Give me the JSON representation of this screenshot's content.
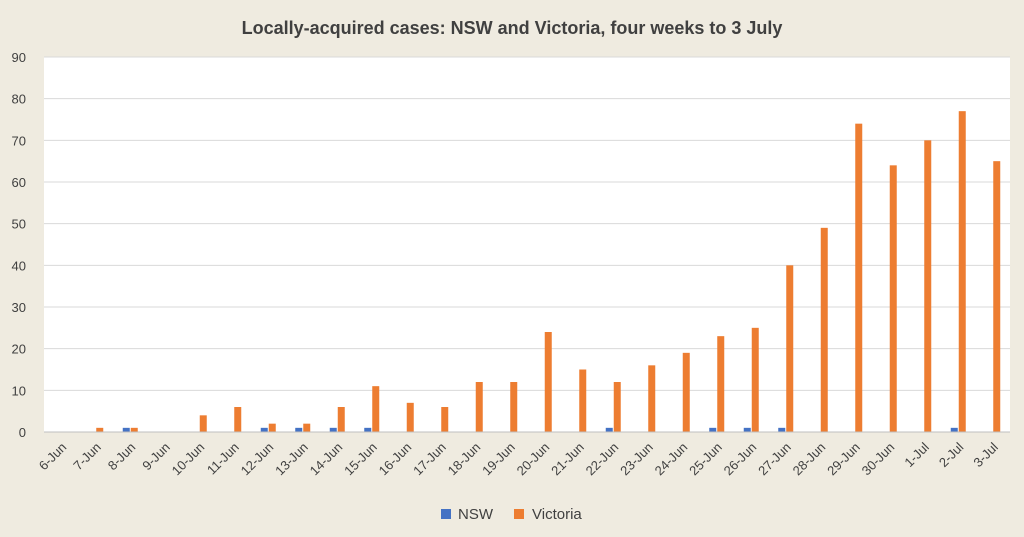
{
  "chart_data": {
    "type": "bar",
    "title": "Locally-acquired cases: NSW and Victoria, four weeks to 3 July",
    "xlabel": "",
    "ylabel": "",
    "ylim": [
      0,
      90
    ],
    "yticks": [
      0,
      10,
      20,
      30,
      40,
      50,
      60,
      70,
      80,
      90
    ],
    "grid": true,
    "legend_position": "bottom",
    "categories": [
      "6-Jun",
      "7-Jun",
      "8-Jun",
      "9-Jun",
      "10-Jun",
      "11-Jun",
      "12-Jun",
      "13-Jun",
      "14-Jun",
      "15-Jun",
      "16-Jun",
      "17-Jun",
      "18-Jun",
      "19-Jun",
      "20-Jun",
      "21-Jun",
      "22-Jun",
      "23-Jun",
      "24-Jun",
      "25-Jun",
      "26-Jun",
      "27-Jun",
      "28-Jun",
      "29-Jun",
      "30-Jun",
      "1-Jul",
      "2-Jul",
      "3-Jul"
    ],
    "series": [
      {
        "name": "NSW",
        "color": "#4472c4",
        "values": [
          0,
          0,
          1,
          0,
          0,
          0,
          1,
          1,
          1,
          1,
          0,
          0,
          0,
          0,
          0,
          0,
          1,
          0,
          0,
          1,
          1,
          1,
          0,
          0,
          0,
          0,
          1,
          0
        ]
      },
      {
        "name": "Victoria",
        "color": "#ed7d31",
        "values": [
          0,
          1,
          1,
          0,
          4,
          6,
          2,
          2,
          6,
          11,
          7,
          6,
          12,
          12,
          24,
          15,
          12,
          16,
          19,
          23,
          25,
          40,
          49,
          74,
          64,
          70,
          77,
          65
        ]
      }
    ]
  }
}
